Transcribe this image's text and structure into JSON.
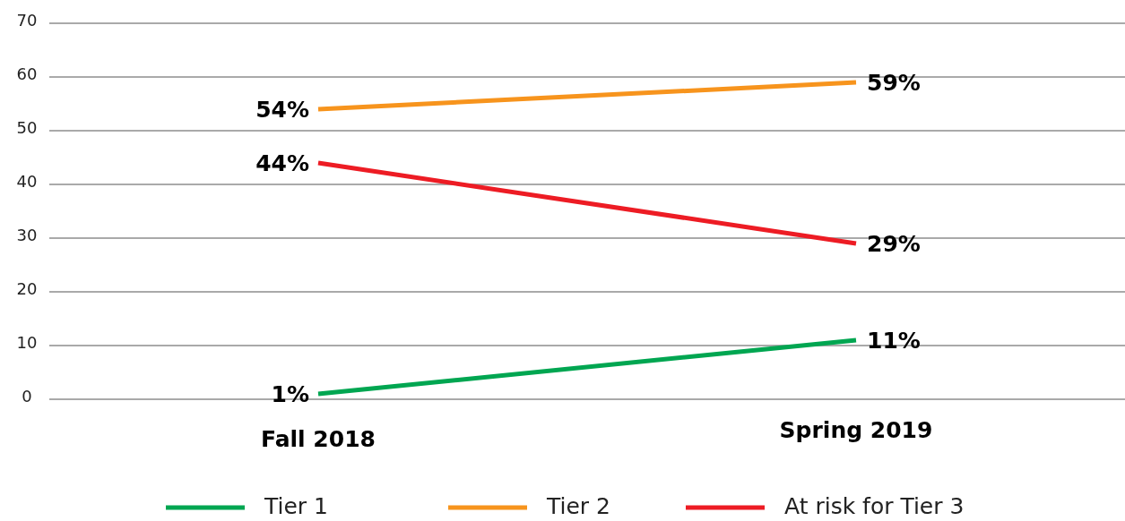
{
  "chart_data": {
    "type": "line",
    "categories": [
      "Fall 2018",
      "Spring 2019"
    ],
    "series": [
      {
        "name": "Tier 1",
        "color": "#00a651",
        "values": [
          1,
          11
        ],
        "value_labels": [
          "1%",
          "11%"
        ]
      },
      {
        "name": "Tier 2",
        "color": "#f7941d",
        "values": [
          54,
          59
        ],
        "value_labels": [
          "54%",
          "59%"
        ]
      },
      {
        "name": "At risk for Tier 3",
        "color": "#ed1c24",
        "values": [
          44,
          29
        ],
        "value_labels": [
          "44%",
          "29%"
        ]
      }
    ],
    "ylim": [
      0,
      70
    ],
    "yticks": [
      0,
      10,
      20,
      30,
      40,
      50,
      60,
      70
    ],
    "grid": "y",
    "legend": "bottom",
    "marker": "none",
    "line_style": "solid"
  }
}
